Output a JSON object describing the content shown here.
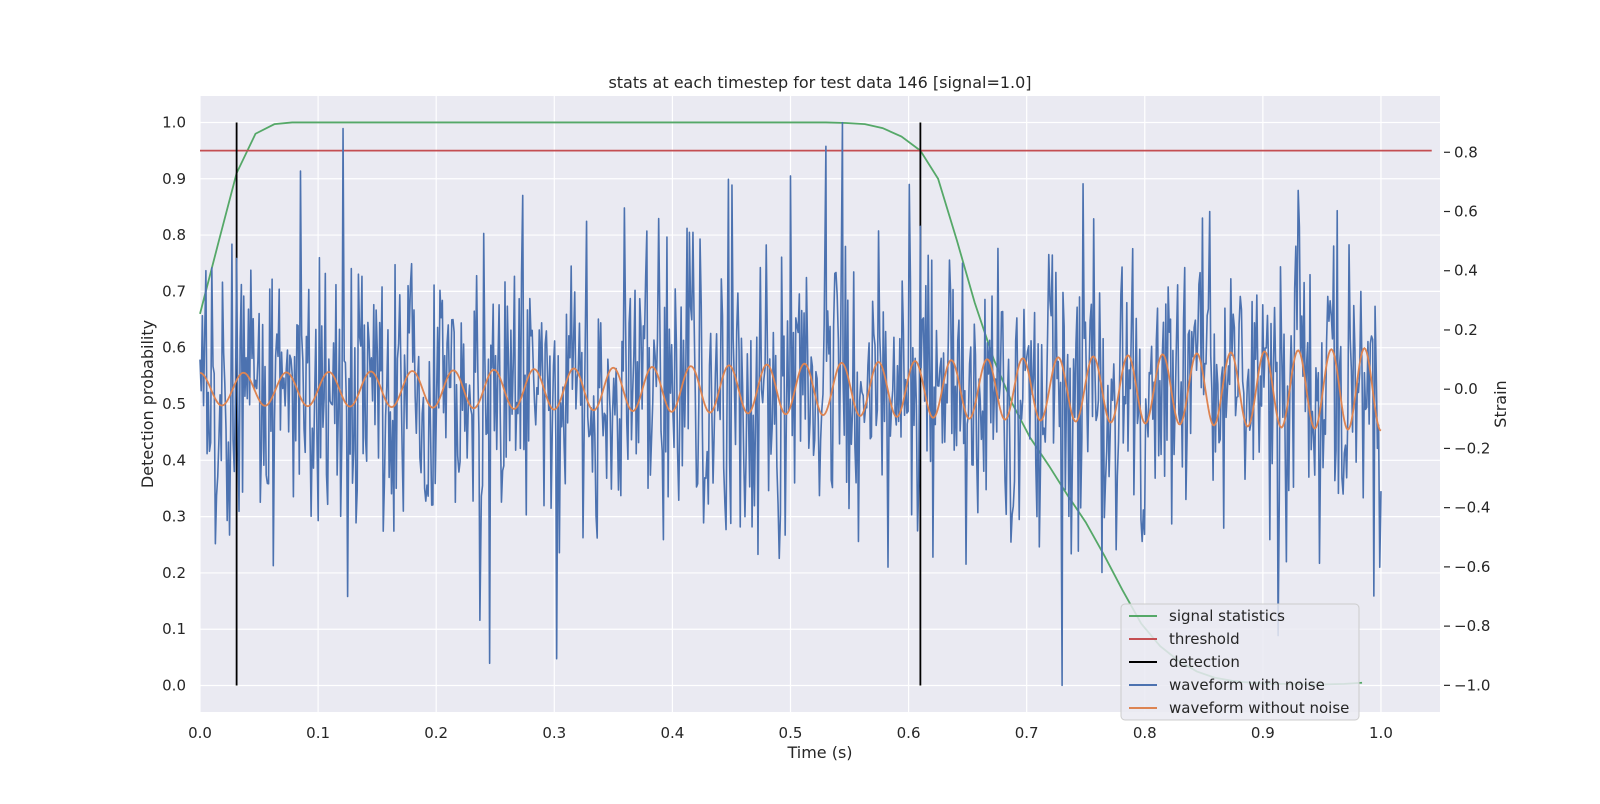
{
  "chart_data": {
    "type": "line",
    "title": "stats at each timestep for test data 146 [signal=1.0]",
    "xlabel": "Time (s)",
    "ylabel_left": "Detection probability",
    "ylabel_right": "Strain",
    "xlim": [
      0.0,
      1.05
    ],
    "ylim_left": [
      -0.047,
      1.047
    ],
    "ylim_right": [
      -1.09,
      0.99
    ],
    "x_ticks": [
      "0.0",
      "0.1",
      "0.2",
      "0.3",
      "0.4",
      "0.5",
      "0.6",
      "0.7",
      "0.8",
      "0.9",
      "1.0"
    ],
    "y_left_ticks": [
      "0.0",
      "0.1",
      "0.2",
      "0.3",
      "0.4",
      "0.5",
      "0.6",
      "0.7",
      "0.8",
      "0.9",
      "1.0"
    ],
    "y_right_ticks": [
      "−1.0",
      "−0.8",
      "−0.6",
      "−0.4",
      "−0.2",
      "0.0",
      "0.2",
      "0.4",
      "0.6",
      "0.8"
    ],
    "grid": true,
    "background": "#eaeaf2",
    "legend_position": "lower-right",
    "series": [
      {
        "name": "signal statistics",
        "axis": "left",
        "color": "#55a868",
        "x": [
          0.0,
          0.016,
          0.031,
          0.047,
          0.063,
          0.078,
          0.094,
          0.2,
          0.3,
          0.4,
          0.5,
          0.53,
          0.547,
          0.563,
          0.578,
          0.594,
          0.61,
          0.625,
          0.641,
          0.656,
          0.672,
          0.688,
          0.703,
          0.719,
          0.734,
          0.75,
          0.766,
          0.781,
          0.797,
          0.813,
          0.828,
          0.844,
          0.859,
          0.875,
          0.89,
          0.906,
          0.922,
          0.938,
          0.953,
          0.969,
          0.984
        ],
        "y": [
          0.66,
          0.79,
          0.91,
          0.98,
          0.997,
          1.0,
          1.0,
          1.0,
          1.0,
          1.0,
          1.0,
          1.0,
          0.999,
          0.997,
          0.99,
          0.975,
          0.95,
          0.9,
          0.79,
          0.68,
          0.58,
          0.5,
          0.44,
          0.39,
          0.34,
          0.29,
          0.23,
          0.17,
          0.11,
          0.07,
          0.045,
          0.025,
          0.014,
          0.008,
          0.005,
          0.003,
          0.003,
          0.002,
          0.002,
          0.003,
          0.005
        ]
      },
      {
        "name": "threshold",
        "axis": "left",
        "color": "#c44e52",
        "x": [
          0.0,
          1.043
        ],
        "y": [
          0.95,
          0.95
        ]
      },
      {
        "name": "detection",
        "axis": "left",
        "color": "#000000",
        "segments": [
          {
            "x": [
              0.031,
              0.031
            ],
            "y": [
              0.0,
              1.0
            ]
          },
          {
            "x": [
              0.61,
              0.61
            ],
            "y": [
              0.0,
              1.0
            ]
          }
        ]
      },
      {
        "name": "waveform with noise",
        "axis": "right",
        "color": "#4c72b0",
        "n_points": 1000,
        "x_range": [
          0.0,
          1.0
        ],
        "sample_strain": [
          {
            "x": 0.0,
            "y": 0.1
          },
          {
            "x": 0.005,
            "y": 0.4
          },
          {
            "x": 0.125,
            "y": -0.7
          },
          {
            "x": 0.237,
            "y": -0.78
          },
          {
            "x": 0.302,
            "y": -0.91
          },
          {
            "x": 0.5,
            "y": 0.72
          },
          {
            "x": 0.53,
            "y": 0.82
          },
          {
            "x": 0.544,
            "y": 0.9
          },
          {
            "x": 0.61,
            "y": 0.55
          },
          {
            "x": 0.73,
            "y": -1.0
          },
          {
            "x": 0.855,
            "y": 0.6
          },
          {
            "x": 0.995,
            "y": 0.28
          }
        ]
      },
      {
        "name": "waveform without noise",
        "axis": "right",
        "color": "#dd8452",
        "x_range": [
          0.0,
          1.0
        ],
        "amplitude_start": 0.055,
        "amplitude_end": 0.14,
        "frequency_start_hz": 27,
        "frequency_end_hz": 36
      }
    ]
  }
}
